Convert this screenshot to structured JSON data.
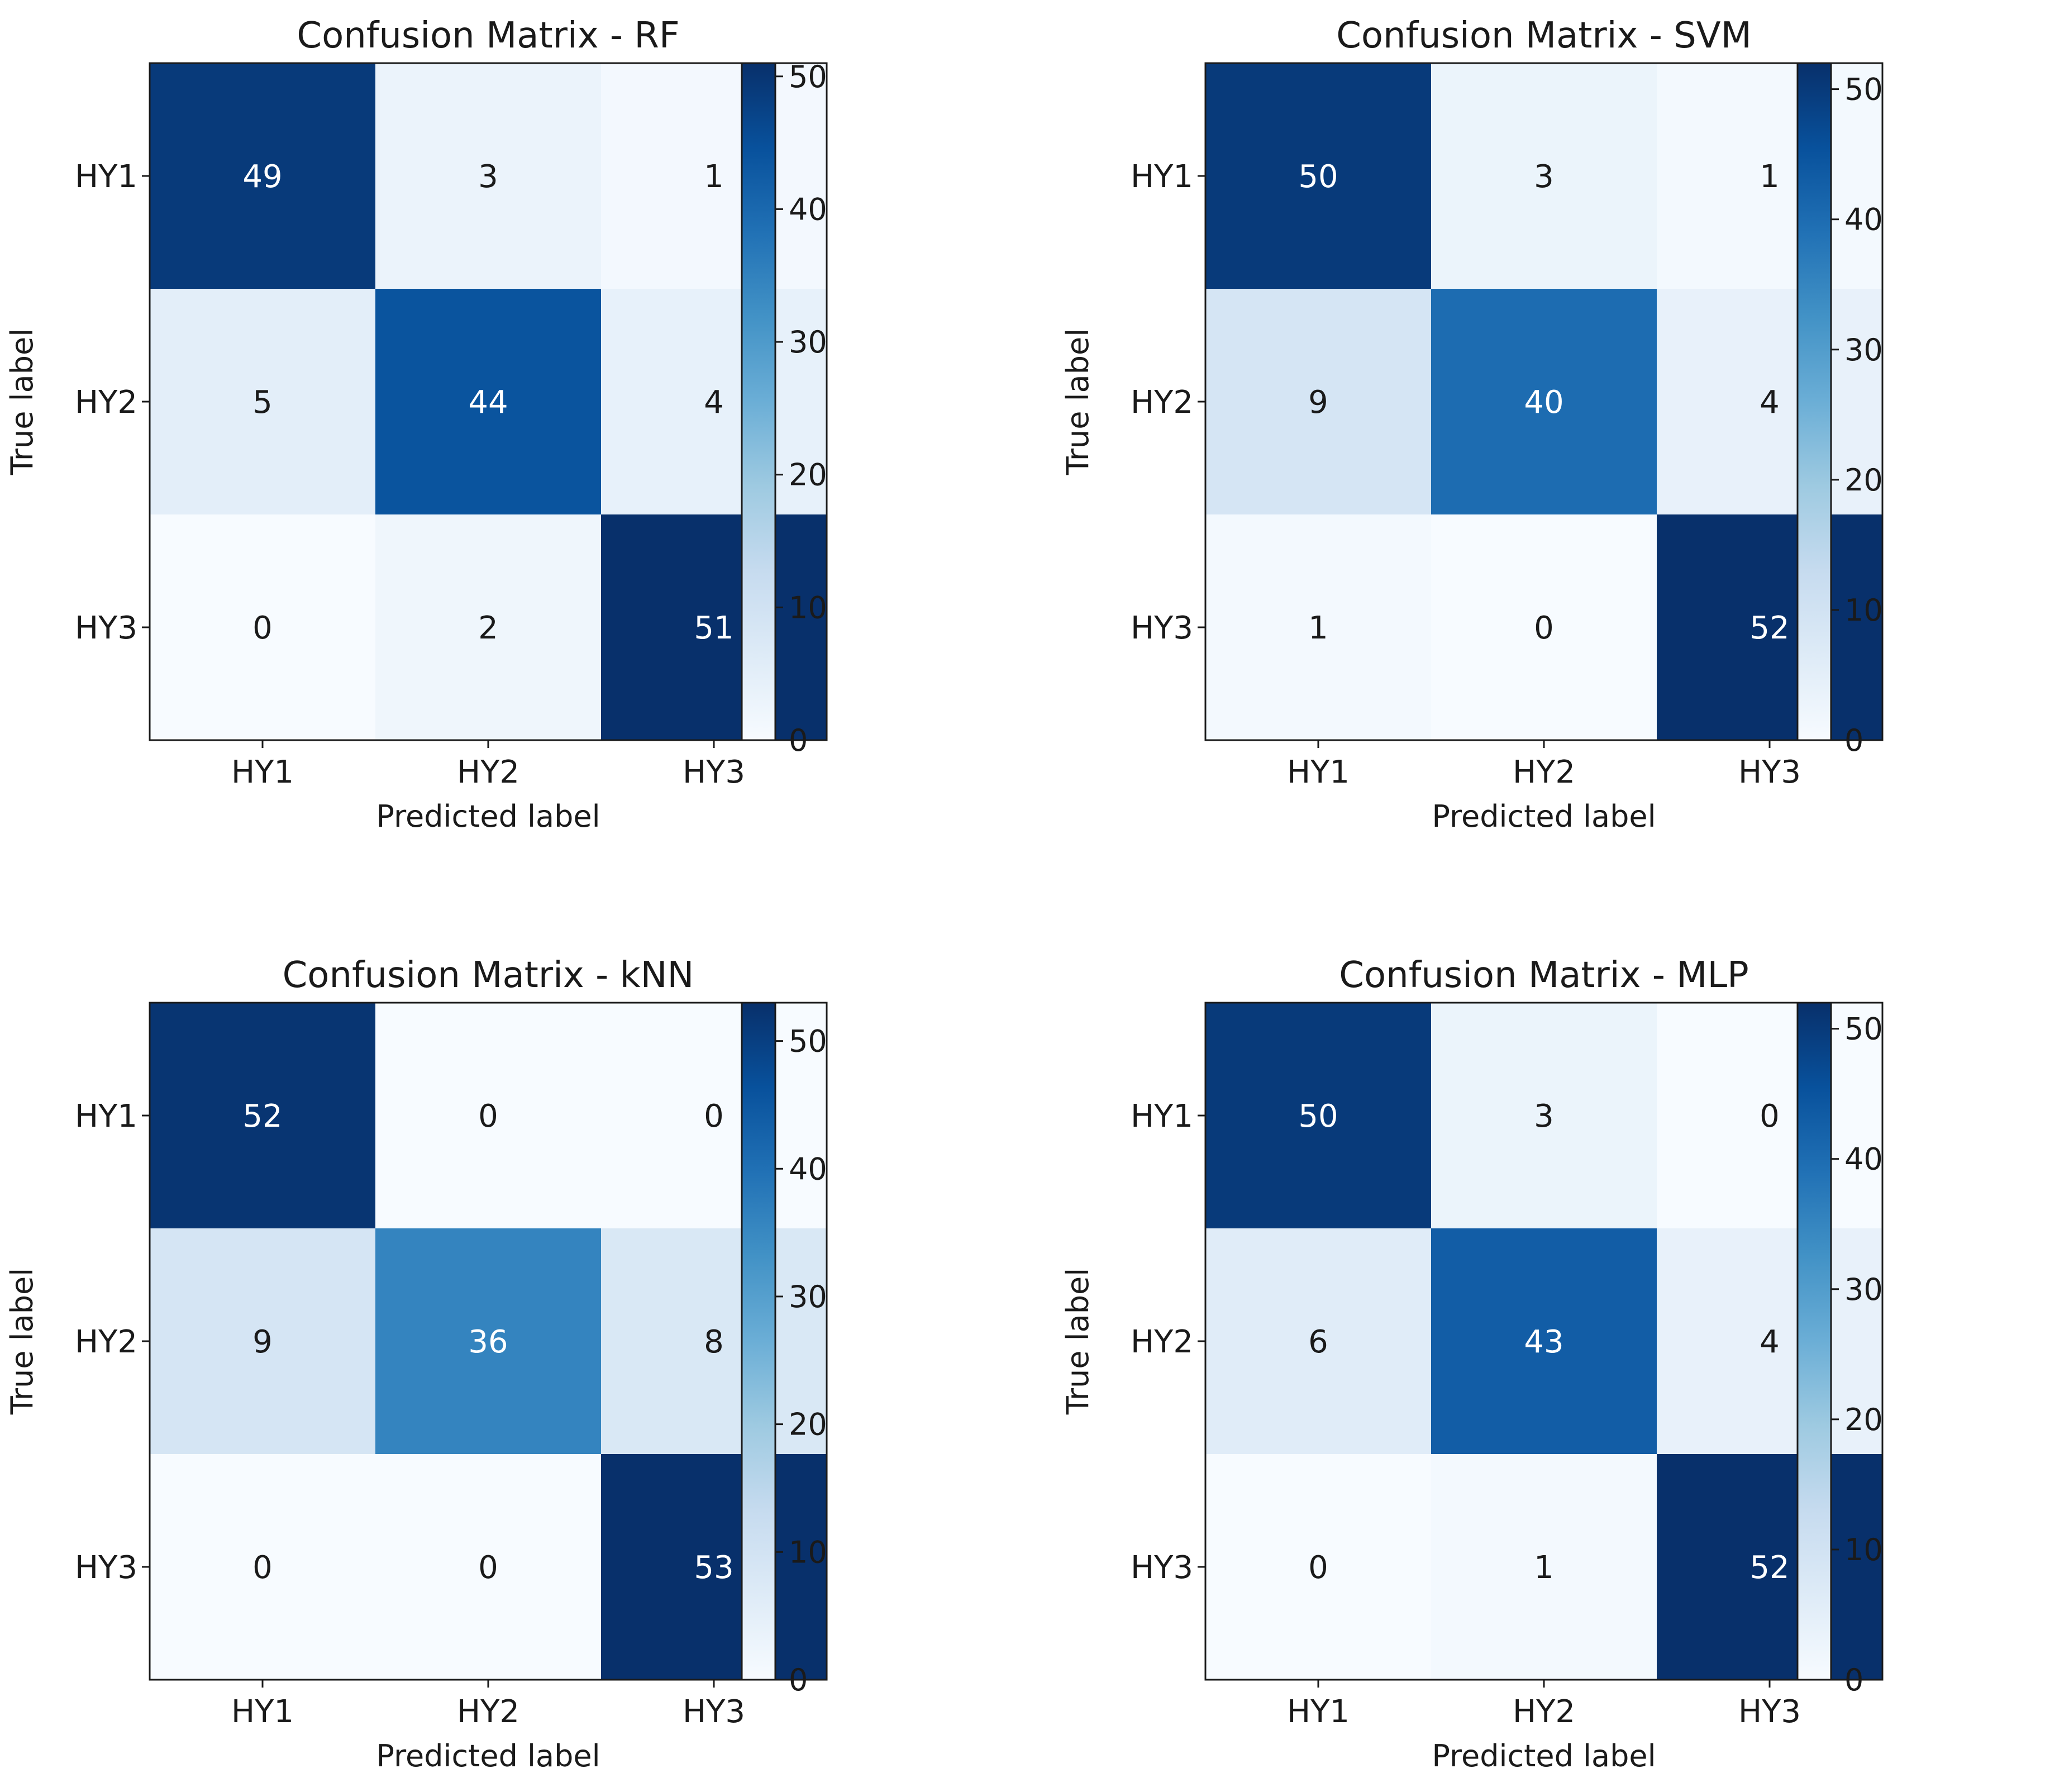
{
  "chart_data": [
    {
      "type": "heatmap",
      "title": "Confusion Matrix - RF",
      "xlabel": "Predicted label",
      "ylabel": "True label",
      "x_categories": [
        "HY1",
        "HY2",
        "HY3"
      ],
      "y_categories": [
        "HY1",
        "HY2",
        "HY3"
      ],
      "values": [
        [
          49,
          3,
          1
        ],
        [
          5,
          44,
          4
        ],
        [
          0,
          2,
          51
        ]
      ],
      "colorbar": {
        "min": 0,
        "max": 51,
        "ticks": [
          "0",
          "10",
          "20",
          "30",
          "40",
          "50"
        ]
      },
      "colormap": "Blues"
    },
    {
      "type": "heatmap",
      "title": "Confusion Matrix - SVM",
      "xlabel": "Predicted label",
      "ylabel": "True label",
      "x_categories": [
        "HY1",
        "HY2",
        "HY3"
      ],
      "y_categories": [
        "HY1",
        "HY2",
        "HY3"
      ],
      "values": [
        [
          50,
          3,
          1
        ],
        [
          9,
          40,
          4
        ],
        [
          1,
          0,
          52
        ]
      ],
      "colorbar": {
        "min": 0,
        "max": 52,
        "ticks": [
          "0",
          "10",
          "20",
          "30",
          "40",
          "50"
        ]
      },
      "colormap": "Blues"
    },
    {
      "type": "heatmap",
      "title": "Confusion Matrix - kNN",
      "xlabel": "Predicted label",
      "ylabel": "True label",
      "x_categories": [
        "HY1",
        "HY2",
        "HY3"
      ],
      "y_categories": [
        "HY1",
        "HY2",
        "HY3"
      ],
      "values": [
        [
          52,
          0,
          0
        ],
        [
          9,
          36,
          8
        ],
        [
          0,
          0,
          53
        ]
      ],
      "colorbar": {
        "min": 0,
        "max": 53,
        "ticks": [
          "0",
          "10",
          "20",
          "30",
          "40",
          "50"
        ]
      },
      "colormap": "Blues"
    },
    {
      "type": "heatmap",
      "title": "Confusion Matrix - MLP",
      "xlabel": "Predicted label",
      "ylabel": "True label",
      "x_categories": [
        "HY1",
        "HY2",
        "HY3"
      ],
      "y_categories": [
        "HY1",
        "HY2",
        "HY3"
      ],
      "values": [
        [
          50,
          3,
          0
        ],
        [
          6,
          43,
          4
        ],
        [
          0,
          1,
          52
        ]
      ],
      "colorbar": {
        "min": 0,
        "max": 52,
        "ticks": [
          "0",
          "10",
          "20",
          "30",
          "40",
          "50"
        ]
      },
      "colormap": "Blues"
    }
  ]
}
